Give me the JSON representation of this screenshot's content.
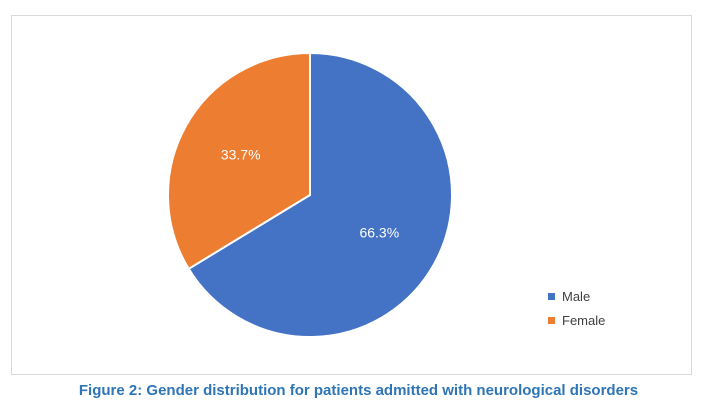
{
  "caption": "Figure 2: Gender distribution for patients admitted with neurological disorders",
  "chart_data": {
    "type": "pie",
    "title": "",
    "categories": [
      "Male",
      "Female"
    ],
    "values": [
      66.3,
      33.7
    ],
    "labels": [
      "66.3%",
      "33.7%"
    ],
    "colors": [
      "#4472c4",
      "#ed7d31"
    ],
    "legend_position": "bottom-right",
    "start_angle": "12-o-clock",
    "direction": "clockwise"
  }
}
